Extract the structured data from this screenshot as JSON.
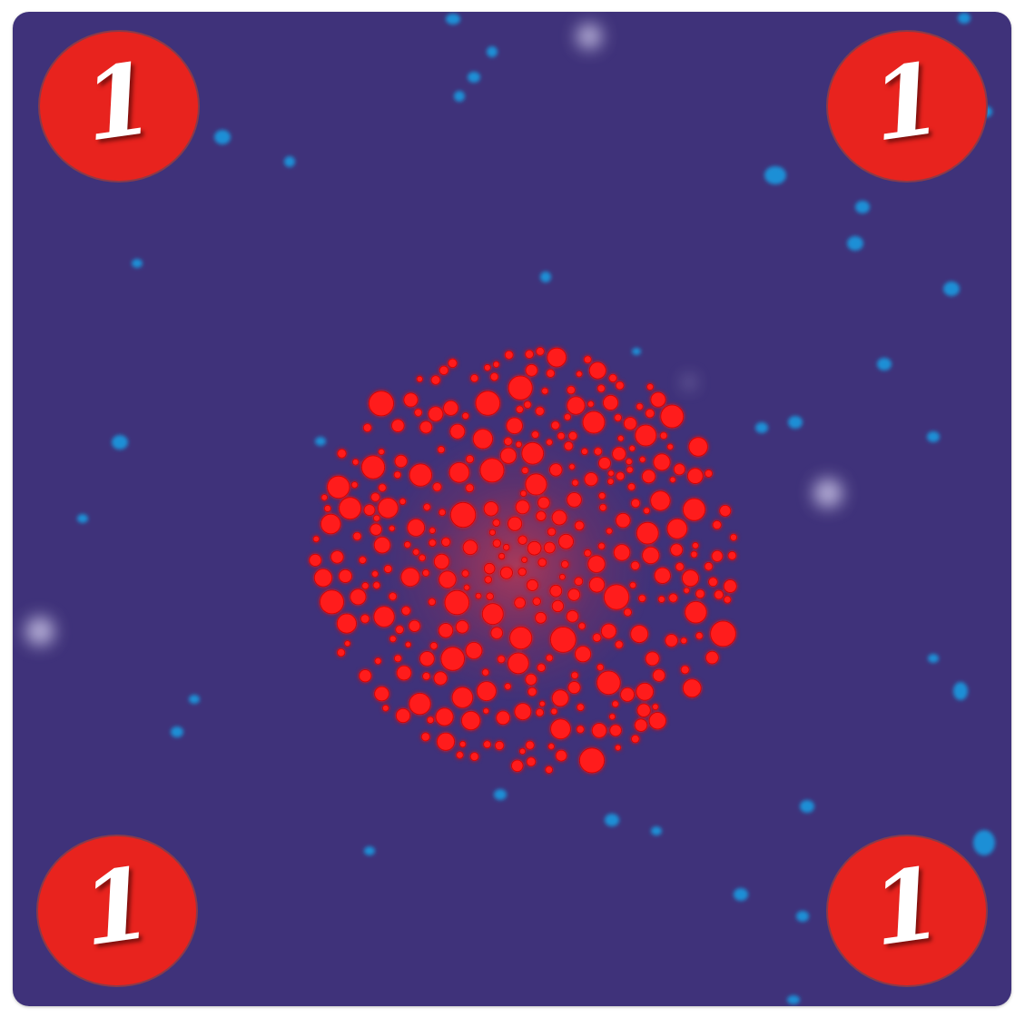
{
  "card": {
    "background_color": "#3f327a",
    "star_color": "#1a8fd6",
    "glow_color": "#e8e4ff"
  },
  "cluster": {
    "dot_color": "#ff1a1a",
    "dot_stroke": "#d10000",
    "glow_color": "#ff3030"
  },
  "badges": {
    "top_left": "1",
    "top_right": "1",
    "bottom_left": "1",
    "bottom_right": "1",
    "color": "#e8231e"
  }
}
